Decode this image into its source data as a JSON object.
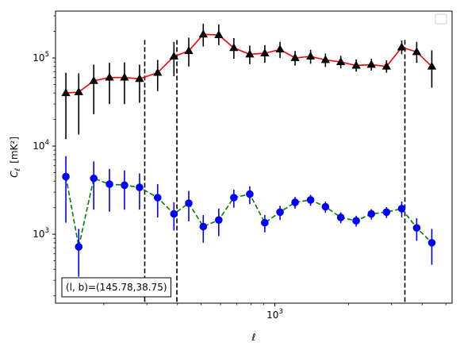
{
  "chart_data": {
    "type": "scatter",
    "xlabel": "ℓ",
    "ylabel": "C_ℓ [mK²]",
    "xscale": "log",
    "yscale": "log",
    "xlim": [
      127,
      5300
    ],
    "ylim": [
      165,
      340000
    ],
    "x_tick_labels": [
      {
        "value": 1000,
        "label": "10^3"
      }
    ],
    "y_tick_labels": [
      {
        "value": 1000,
        "label": "10^3"
      },
      {
        "value": 10000,
        "label": "10^4"
      },
      {
        "value": 100000,
        "label": "10^5"
      }
    ],
    "legend": {
      "location": "upper right",
      "entries": []
    },
    "annotation": "(l, b)=(145.78,38.75)",
    "vertical_lines": [
      {
        "x": 294,
        "ymin": 165,
        "ymax": 160000,
        "color": "#000000",
        "style": "dashed"
      },
      {
        "x": 398,
        "ymin": 165,
        "ymax": 160000,
        "color": "#000000",
        "style": "dashed"
      },
      {
        "x": 3400,
        "ymin": 165,
        "ymax": 160000,
        "color": "#000000",
        "style": "dashed"
      }
    ],
    "series": [
      {
        "marker": "triangle",
        "line_color": "#ff0000",
        "line_style": "solid",
        "marker_color": "#000000",
        "errorbar_color": "#000000",
        "points": [
          {
            "x": 140,
            "y": 40000,
            "ylo": 12000,
            "yhi": 68000
          },
          {
            "x": 158,
            "y": 41000,
            "ylo": 13500,
            "yhi": 67000
          },
          {
            "x": 182,
            "y": 55000,
            "ylo": 23000,
            "yhi": 84000
          },
          {
            "x": 211,
            "y": 60000,
            "ylo": 30000,
            "yhi": 88000
          },
          {
            "x": 243,
            "y": 60000,
            "ylo": 30000,
            "yhi": 89000
          },
          {
            "x": 280,
            "y": 58000,
            "ylo": 31000,
            "yhi": 84000
          },
          {
            "x": 332,
            "y": 68000,
            "ylo": 42000,
            "yhi": 95000
          },
          {
            "x": 387,
            "y": 104000,
            "ylo": 62000,
            "yhi": 152000
          },
          {
            "x": 445,
            "y": 120000,
            "ylo": 80000,
            "yhi": 170000
          },
          {
            "x": 510,
            "y": 185000,
            "ylo": 135000,
            "yhi": 245000
          },
          {
            "x": 590,
            "y": 182000,
            "ylo": 140000,
            "yhi": 240000
          },
          {
            "x": 680,
            "y": 130000,
            "ylo": 98000,
            "yhi": 168000
          },
          {
            "x": 790,
            "y": 110000,
            "ylo": 85000,
            "yhi": 138000
          },
          {
            "x": 910,
            "y": 113000,
            "ylo": 88000,
            "yhi": 140000
          },
          {
            "x": 1050,
            "y": 125000,
            "ylo": 100000,
            "yhi": 152000
          },
          {
            "x": 1210,
            "y": 100000,
            "ylo": 82000,
            "yhi": 120000
          },
          {
            "x": 1400,
            "y": 104000,
            "ylo": 86000,
            "yhi": 124000
          },
          {
            "x": 1610,
            "y": 95000,
            "ylo": 79000,
            "yhi": 112000
          },
          {
            "x": 1860,
            "y": 90000,
            "ylo": 76000,
            "yhi": 106000
          },
          {
            "x": 2150,
            "y": 82000,
            "ylo": 70000,
            "yhi": 96000
          },
          {
            "x": 2480,
            "y": 84000,
            "ylo": 72000,
            "yhi": 98000
          },
          {
            "x": 2860,
            "y": 80000,
            "ylo": 68000,
            "yhi": 94000
          },
          {
            "x": 3300,
            "y": 132000,
            "ylo": 110000,
            "yhi": 158000
          },
          {
            "x": 3800,
            "y": 117000,
            "ylo": 88000,
            "yhi": 152000
          },
          {
            "x": 4380,
            "y": 80000,
            "ylo": 46000,
            "yhi": 122000
          }
        ]
      },
      {
        "marker": "circle",
        "line_color": "#008000",
        "line_style": "dashed",
        "marker_color": "#0000ff",
        "errorbar_color": "#0000ff",
        "points": [
          {
            "x": 140,
            "y": 4500,
            "ylo": 1350,
            "yhi": 7700
          },
          {
            "x": 158,
            "y": 720,
            "ylo": 330,
            "yhi": 1150
          },
          {
            "x": 182,
            "y": 4300,
            "ylo": 1900,
            "yhi": 6700
          },
          {
            "x": 211,
            "y": 3700,
            "ylo": 1800,
            "yhi": 5500
          },
          {
            "x": 243,
            "y": 3600,
            "ylo": 1900,
            "yhi": 5300
          },
          {
            "x": 280,
            "y": 3400,
            "ylo": 1900,
            "yhi": 4900
          },
          {
            "x": 332,
            "y": 2600,
            "ylo": 1550,
            "yhi": 3700
          },
          {
            "x": 387,
            "y": 1700,
            "ylo": 1100,
            "yhi": 2300
          },
          {
            "x": 445,
            "y": 2250,
            "ylo": 1400,
            "yhi": 3100
          },
          {
            "x": 510,
            "y": 1220,
            "ylo": 800,
            "yhi": 1650
          },
          {
            "x": 590,
            "y": 1450,
            "ylo": 950,
            "yhi": 1950
          },
          {
            "x": 680,
            "y": 2600,
            "ylo": 2000,
            "yhi": 3200
          },
          {
            "x": 790,
            "y": 2850,
            "ylo": 2200,
            "yhi": 3500
          },
          {
            "x": 910,
            "y": 1350,
            "ylo": 1050,
            "yhi": 1650
          },
          {
            "x": 1050,
            "y": 1780,
            "ylo": 1450,
            "yhi": 2100
          },
          {
            "x": 1210,
            "y": 2300,
            "ylo": 1950,
            "yhi": 2650
          },
          {
            "x": 1400,
            "y": 2450,
            "ylo": 2100,
            "yhi": 2800
          },
          {
            "x": 1610,
            "y": 2050,
            "ylo": 1750,
            "yhi": 2350
          },
          {
            "x": 1860,
            "y": 1550,
            "ylo": 1330,
            "yhi": 1770
          },
          {
            "x": 2150,
            "y": 1420,
            "ylo": 1220,
            "yhi": 1620
          },
          {
            "x": 2480,
            "y": 1700,
            "ylo": 1470,
            "yhi": 1930
          },
          {
            "x": 2860,
            "y": 1780,
            "ylo": 1530,
            "yhi": 2030
          },
          {
            "x": 3300,
            "y": 1950,
            "ylo": 1550,
            "yhi": 2350
          },
          {
            "x": 3800,
            "y": 1180,
            "ylo": 840,
            "yhi": 1520
          },
          {
            "x": 4380,
            "y": 800,
            "ylo": 450,
            "yhi": 1150
          }
        ]
      }
    ]
  }
}
